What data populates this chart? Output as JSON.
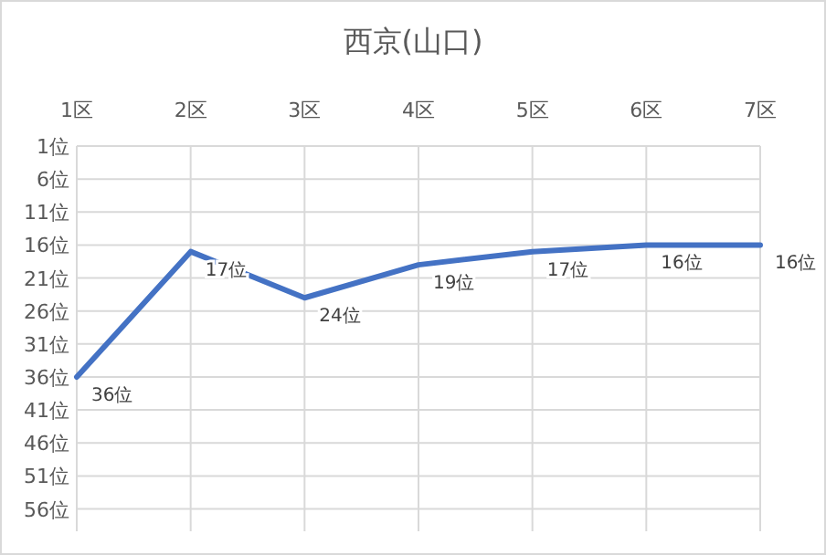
{
  "chart_data": {
    "type": "line",
    "title": "西京(山口)",
    "categories": [
      "1区",
      "2区",
      "3区",
      "4区",
      "5区",
      "6区",
      "7区"
    ],
    "series": [
      {
        "color": "#4472c4",
        "values": [
          36,
          17,
          24,
          19,
          17,
          16,
          16
        ],
        "value_labels": [
          "36位",
          "17位",
          "24位",
          "19位",
          "17位",
          "16位",
          "16位"
        ]
      }
    ],
    "ylim": [
      58,
      1
    ],
    "yticks": [
      {
        "value": 1,
        "label": "1位"
      },
      {
        "value": 6,
        "label": "6位"
      },
      {
        "value": 11,
        "label": "11位"
      },
      {
        "value": 16,
        "label": "16位"
      },
      {
        "value": 21,
        "label": "21位"
      },
      {
        "value": 26,
        "label": "26位"
      },
      {
        "value": 31,
        "label": "31位"
      },
      {
        "value": 36,
        "label": "36位"
      },
      {
        "value": 41,
        "label": "41位"
      },
      {
        "value": 46,
        "label": "46位"
      },
      {
        "value": 51,
        "label": "51位"
      },
      {
        "value": 56,
        "label": "56位"
      }
    ],
    "grid": true,
    "marker": "none",
    "line_style": "solid"
  }
}
